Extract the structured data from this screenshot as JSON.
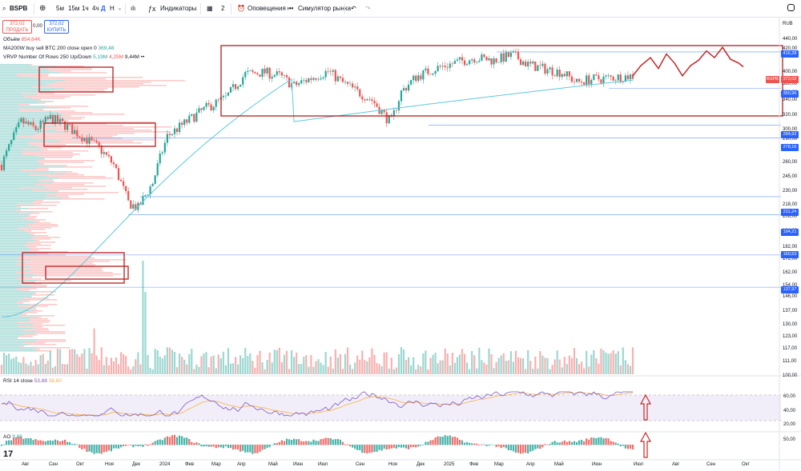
{
  "toolbar": {
    "symbol": "BSPB",
    "intervals": [
      "5м",
      "15м",
      "1ч",
      "4ч",
      "Д",
      "Н"
    ],
    "active_interval": "Д",
    "indicators_label": "Индикаторы",
    "layout_count": "2",
    "alerts_label": "Оповещения",
    "replay_label": "Симулятор рынка"
  },
  "order": {
    "sell_price": "372,02",
    "sell_label": "ПРОДАТЬ",
    "spread": "0,00",
    "buy_price": "372,02",
    "buy_label": "КУПИТЬ"
  },
  "legend": {
    "volume_name": "Объём",
    "volume_value": "854,64K",
    "ma_name": "MA200W buy sell BTC 200 close open 0",
    "ma_value": "369,48",
    "vrvp_name": "VRVP Number Of Rows 250 Up/Down",
    "vrvp_up": "5,19M",
    "vrvp_down": "4,25M",
    "vrvp_total": "9,44M"
  },
  "currency": "RUB",
  "symbol_tag": "BSPB",
  "current_price": "372,02",
  "price_axis": [
    "440,00",
    "420,00",
    "400,00",
    "380,00",
    "360,00",
    "340,00",
    "320,00",
    "300,00",
    "290,00",
    "270,00",
    "260,00",
    "245,00",
    "230,00",
    "218,00",
    "206,00",
    "194,00",
    "182,00",
    "172,00",
    "162,00",
    "154,00",
    "146,00",
    "137,00",
    "130,00",
    "123,00",
    "117,00",
    "111,00",
    "100,00"
  ],
  "level_tags": [
    "416,28",
    "350,96",
    "294,92",
    "278,16",
    "211,24",
    "194,21",
    "160,53",
    "137,97"
  ],
  "time_axis": [
    "Авг",
    "Сен",
    "Окт",
    "Ноя",
    "Дек",
    "2024",
    "Фев",
    "Мар",
    "Апр",
    "Май",
    "Июн",
    "Июл",
    "Сен",
    "Ноя",
    "Дек",
    "2025",
    "Фев",
    "Мар",
    "Апр",
    "Май",
    "Июн",
    "Июл",
    "Авг",
    "Сен",
    "Окт"
  ],
  "rsi": {
    "label": "RSI 14 close",
    "value": "53,88",
    "ma_value": "38,80",
    "axis": [
      "60,00",
      "40,00",
      "20,00"
    ]
  },
  "ao": {
    "label": "AO",
    "value": "9,88",
    "axis": [
      "50,00"
    ]
  },
  "colors": {
    "up": "#26a69a",
    "down": "#ef5350",
    "ma": "#5ec8d8",
    "box": "#b71c1c",
    "rsi": "#7e57c2",
    "rsi_ma": "#f5b041",
    "tag": "#2962ff"
  }
}
